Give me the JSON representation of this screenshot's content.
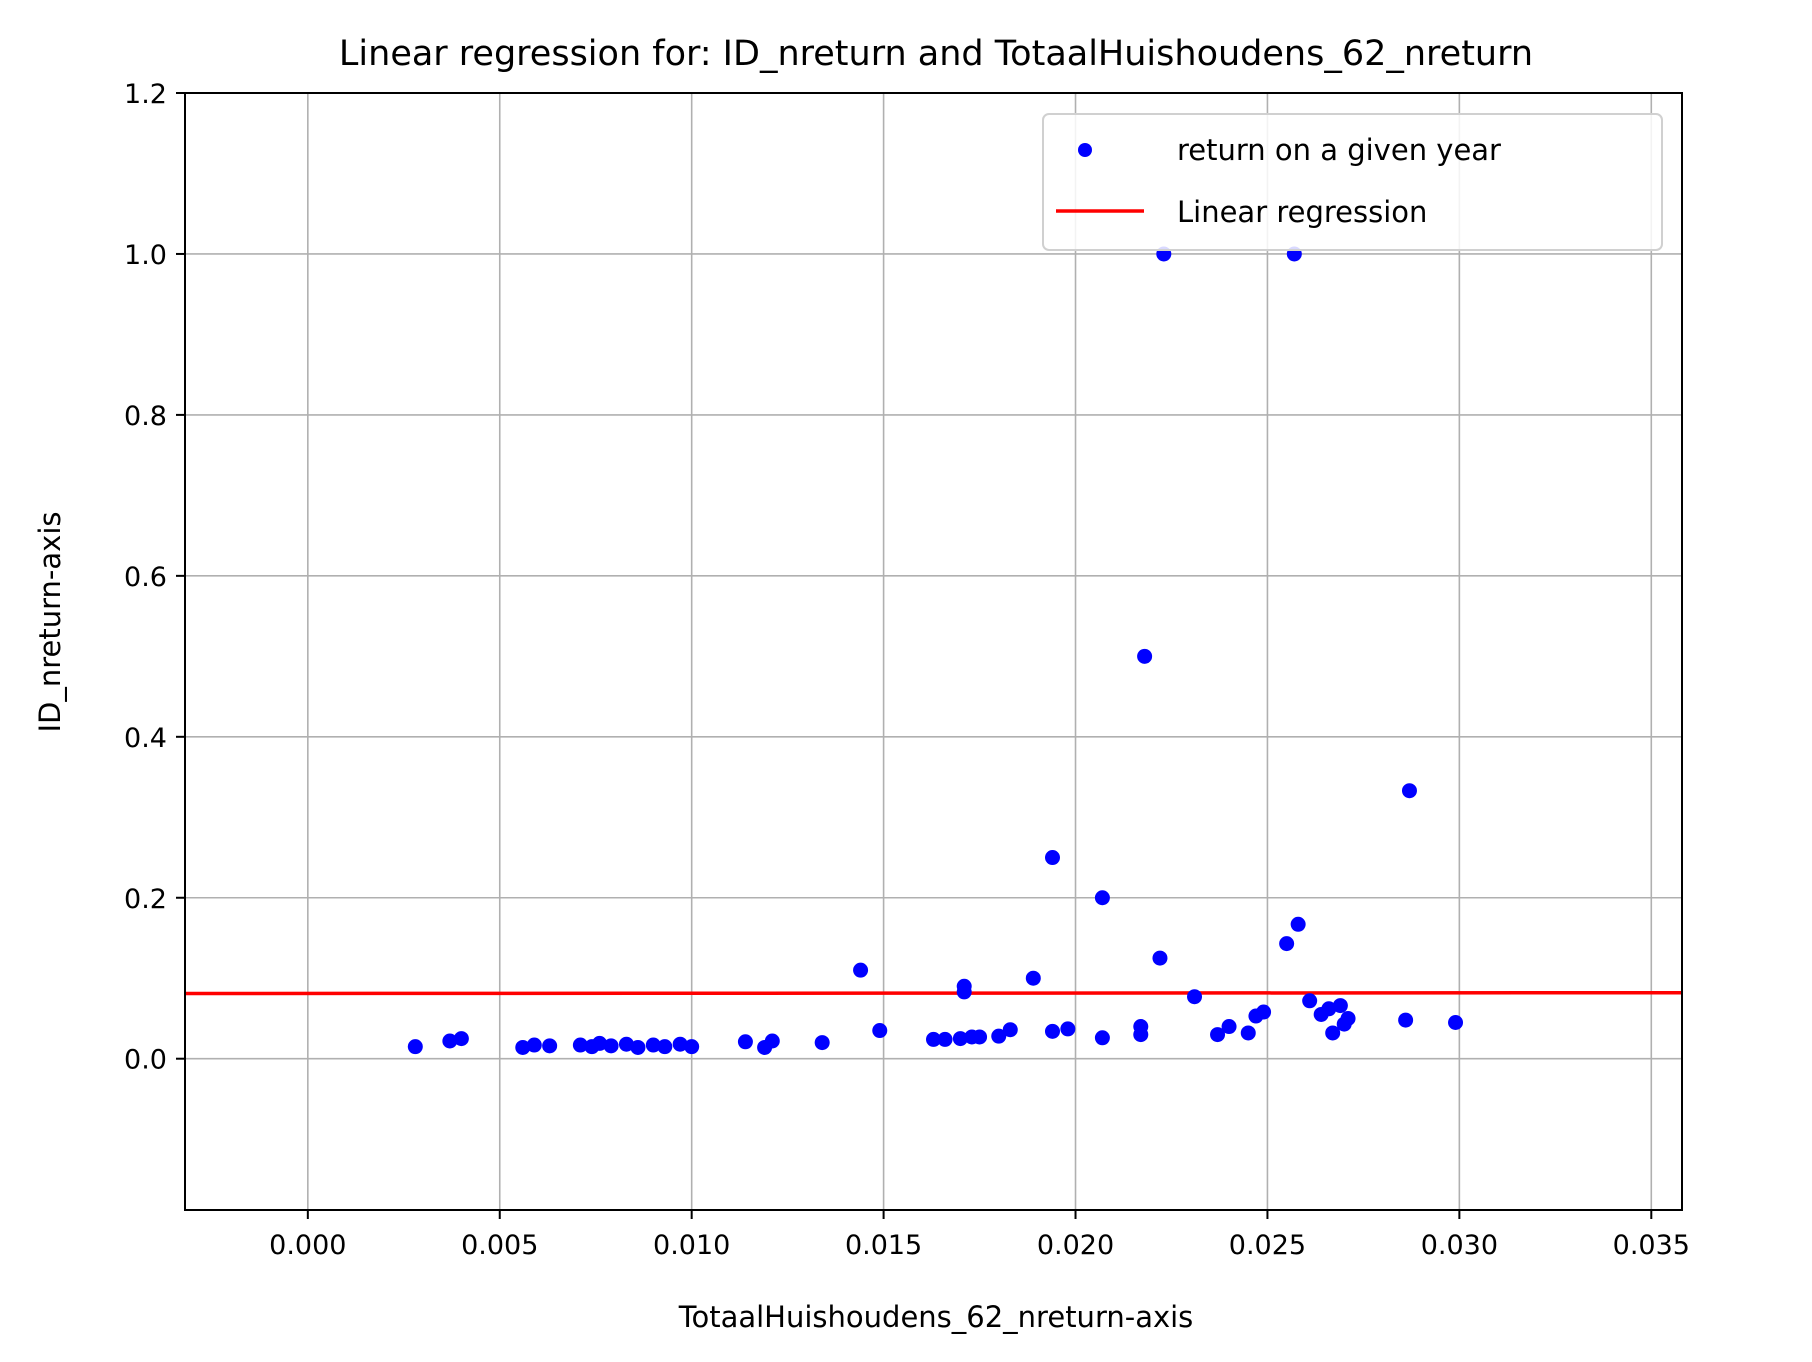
{
  "chart_data": {
    "type": "scatter",
    "title": "Linear regression for: ID_nreturn and TotaalHuishoudens_62_nreturn",
    "xlabel": "TotaalHuishoudens_62_nreturn-axis",
    "ylabel": "ID_nreturn-axis",
    "xlim": [
      -0.0032,
      0.0358
    ],
    "ylim": [
      -0.188,
      1.2
    ],
    "xticks": [
      0.0,
      0.005,
      0.01,
      0.015,
      0.02,
      0.025,
      0.03,
      0.035
    ],
    "xtick_labels": [
      "0.000",
      "0.005",
      "0.010",
      "0.015",
      "0.020",
      "0.025",
      "0.030",
      "0.035"
    ],
    "yticks": [
      0.0,
      0.2,
      0.4,
      0.6,
      0.8,
      1.0,
      1.2
    ],
    "ytick_labels": [
      "0.0",
      "0.2",
      "0.4",
      "0.6",
      "0.8",
      "1.0",
      "1.2"
    ],
    "grid": true,
    "legend_position": "top-right",
    "colors": {
      "points": "#0000ff",
      "line": "#ff0000",
      "grid": "#b0b0b0"
    },
    "series": [
      {
        "name": "return on a given year",
        "kind": "scatter",
        "points": [
          [
            0.0028,
            0.015
          ],
          [
            0.0037,
            0.022
          ],
          [
            0.004,
            0.025
          ],
          [
            0.0056,
            0.014
          ],
          [
            0.0059,
            0.017
          ],
          [
            0.0063,
            0.016
          ],
          [
            0.0071,
            0.017
          ],
          [
            0.0074,
            0.015
          ],
          [
            0.0076,
            0.019
          ],
          [
            0.0079,
            0.016
          ],
          [
            0.0083,
            0.018
          ],
          [
            0.0086,
            0.014
          ],
          [
            0.009,
            0.017
          ],
          [
            0.0093,
            0.015
          ],
          [
            0.0097,
            0.018
          ],
          [
            0.01,
            0.015
          ],
          [
            0.0114,
            0.021
          ],
          [
            0.0119,
            0.014
          ],
          [
            0.0121,
            0.022
          ],
          [
            0.0134,
            0.02
          ],
          [
            0.0144,
            0.11
          ],
          [
            0.0149,
            0.035
          ],
          [
            0.0163,
            0.024
          ],
          [
            0.0166,
            0.024
          ],
          [
            0.017,
            0.025
          ],
          [
            0.0171,
            0.09
          ],
          [
            0.0171,
            0.083
          ],
          [
            0.0173,
            0.027
          ],
          [
            0.0175,
            0.027
          ],
          [
            0.018,
            0.028
          ],
          [
            0.0183,
            0.036
          ],
          [
            0.0189,
            0.1
          ],
          [
            0.0194,
            0.25
          ],
          [
            0.0194,
            0.034
          ],
          [
            0.0198,
            0.037
          ],
          [
            0.0207,
            0.2
          ],
          [
            0.0207,
            0.026
          ],
          [
            0.0217,
            0.03
          ],
          [
            0.0217,
            0.04
          ],
          [
            0.0218,
            0.5
          ],
          [
            0.0222,
            0.125
          ],
          [
            0.0223,
            1.0
          ],
          [
            0.0231,
            0.077
          ],
          [
            0.0237,
            0.03
          ],
          [
            0.024,
            0.04
          ],
          [
            0.0245,
            0.032
          ],
          [
            0.0247,
            0.053
          ],
          [
            0.0249,
            0.058
          ],
          [
            0.0255,
            0.143
          ],
          [
            0.0257,
            1.0
          ],
          [
            0.0258,
            0.167
          ],
          [
            0.0261,
            0.072
          ],
          [
            0.0264,
            0.055
          ],
          [
            0.0266,
            0.062
          ],
          [
            0.0267,
            0.032
          ],
          [
            0.0269,
            0.066
          ],
          [
            0.027,
            0.043
          ],
          [
            0.0271,
            0.05
          ],
          [
            0.0286,
            0.048
          ],
          [
            0.0287,
            0.333
          ],
          [
            0.0299,
            0.045
          ]
        ]
      },
      {
        "name": "Linear regression",
        "kind": "line",
        "points": [
          [
            -0.0032,
            0.081
          ],
          [
            0.0358,
            0.082
          ]
        ]
      }
    ]
  }
}
